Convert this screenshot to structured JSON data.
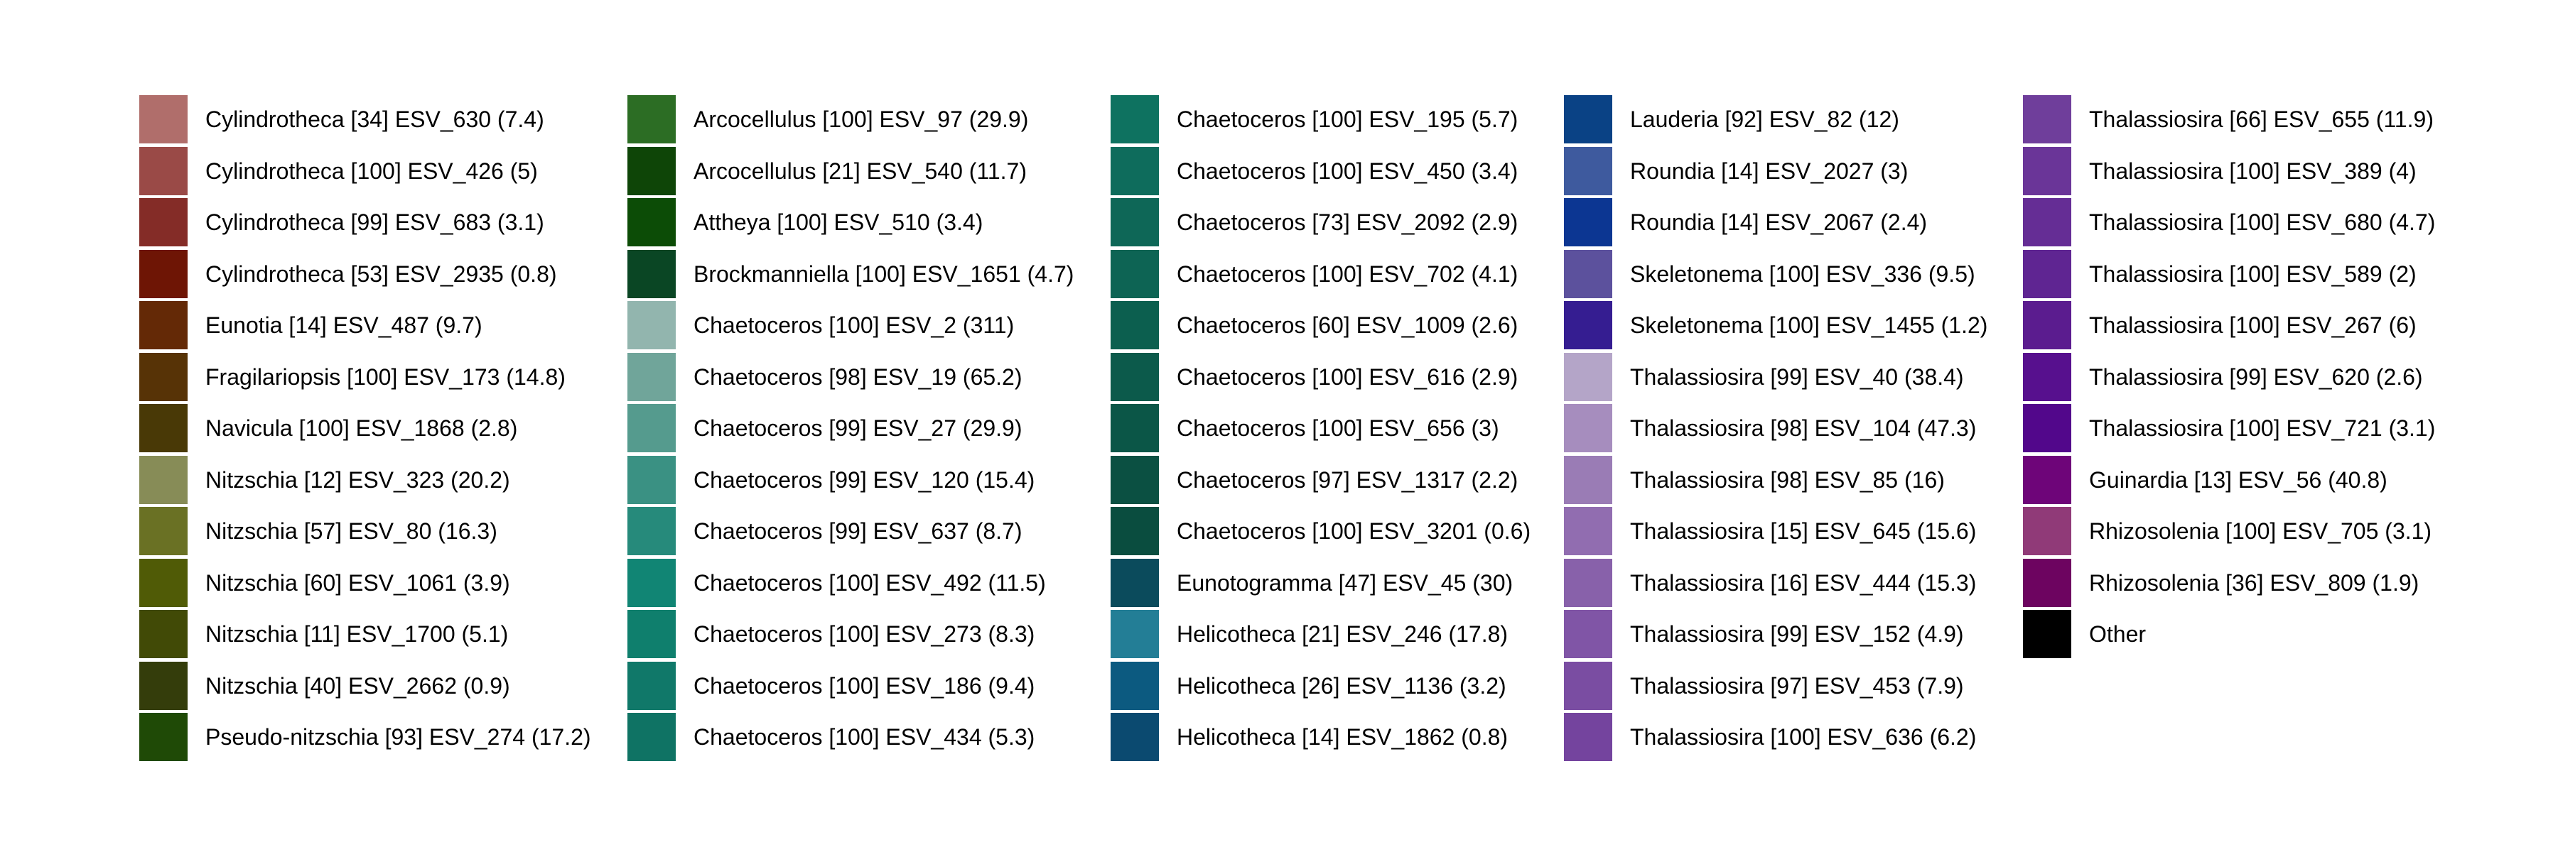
{
  "chart_data": {
    "type": "legend",
    "columns": [
      [
        {
          "label": "Cylindrotheca [34] ESV_630 (7.4)",
          "color": "#B06E6B"
        },
        {
          "label": "Cylindrotheca [100] ESV_426 (5)",
          "color": "#9A4A47"
        },
        {
          "label": "Cylindrotheca [99] ESV_683 (3.1)",
          "color": "#842C27"
        },
        {
          "label": "Cylindrotheca [53] ESV_2935 (0.8)",
          "color": "#6E1505"
        },
        {
          "label": "Eunotia [14] ESV_487 (9.7)",
          "color": "#642906"
        },
        {
          "label": "Fragilariopsis [100] ESV_173 (14.8)",
          "color": "#573306"
        },
        {
          "label": "Navicula [100] ESV_1868 (2.8)",
          "color": "#493906"
        },
        {
          "label": "Nitzschia [12] ESV_323 (20.2)",
          "color": "#878C57"
        },
        {
          "label": "Nitzschia [57] ESV_80 (16.3)",
          "color": "#6A7124"
        },
        {
          "label": "Nitzschia [60] ESV_1061 (3.9)",
          "color": "#505B06"
        },
        {
          "label": "Nitzschia [11] ESV_1700 (5.1)",
          "color": "#414A06"
        },
        {
          "label": "Nitzschia [40] ESV_2662 (0.9)",
          "color": "#343D0B"
        },
        {
          "label": "Pseudo-nitzschia [93] ESV_274 (17.2)",
          "color": "#1F4A06"
        }
      ],
      [
        {
          "label": "Arcocellulus [100] ESV_97 (29.9)",
          "color": "#2C6D24"
        },
        {
          "label": "Arcocellulus [21] ESV_540 (11.7)",
          "color": "#0E4507"
        },
        {
          "label": "Attheya [100] ESV_510 (3.4)",
          "color": "#0C4C06"
        },
        {
          "label": "Brockmanniella [100] ESV_1651 (4.7)",
          "color": "#0A4624"
        },
        {
          "label": "Chaetoceros [100] ESV_2 (311)",
          "color": "#92B5AE"
        },
        {
          "label": "Chaetoceros [98] ESV_19 (65.2)",
          "color": "#70A59A"
        },
        {
          "label": "Chaetoceros [99] ESV_27 (29.9)",
          "color": "#559B8E"
        },
        {
          "label": "Chaetoceros [99] ESV_120 (15.4)",
          "color": "#3A9183"
        },
        {
          "label": "Chaetoceros [99] ESV_637 (8.7)",
          "color": "#268A7B"
        },
        {
          "label": "Chaetoceros [100] ESV_492 (11.5)",
          "color": "#118574"
        },
        {
          "label": "Chaetoceros [100] ESV_273 (8.3)",
          "color": "#0F7F6D"
        },
        {
          "label": "Chaetoceros [100] ESV_186 (9.4)",
          "color": "#107869"
        },
        {
          "label": "Chaetoceros [100] ESV_434 (5.3)",
          "color": "#0F7364"
        }
      ],
      [
        {
          "label": "Chaetoceros [100] ESV_195 (5.7)",
          "color": "#0E7260"
        },
        {
          "label": "Chaetoceros [100] ESV_450 (3.4)",
          "color": "#0E6C5C"
        },
        {
          "label": "Chaetoceros [73] ESV_2092 (2.9)",
          "color": "#0E6757"
        },
        {
          "label": "Chaetoceros [100] ESV_702 (4.1)",
          "color": "#0D6454"
        },
        {
          "label": "Chaetoceros [60] ESV_1009 (2.6)",
          "color": "#0C5F4F"
        },
        {
          "label": "Chaetoceros [100] ESV_616 (2.9)",
          "color": "#0C5A4B"
        },
        {
          "label": "Chaetoceros [100] ESV_656 (3)",
          "color": "#0B5647"
        },
        {
          "label": "Chaetoceros [97] ESV_1317 (2.2)",
          "color": "#0B5042"
        },
        {
          "label": "Chaetoceros [100] ESV_3201 (0.6)",
          "color": "#0A4D3F"
        },
        {
          "label": "Eunotogramma [47] ESV_45 (30)",
          "color": "#0B4B5C"
        },
        {
          "label": "Helicotheca [21] ESV_246 (17.8)",
          "color": "#237E96"
        },
        {
          "label": "Helicotheca [26] ESV_1136 (3.2)",
          "color": "#0C5A80"
        },
        {
          "label": "Helicotheca [14] ESV_1862 (0.8)",
          "color": "#0B4A70"
        }
      ],
      [
        {
          "label": "Lauderia [92] ESV_82 (12)",
          "color": "#0A4285"
        },
        {
          "label": "Roundia [14] ESV_2027 (3)",
          "color": "#3E5A9E"
        },
        {
          "label": "Roundia [14] ESV_2067 (2.4)",
          "color": "#0C3692"
        },
        {
          "label": "Skeletonema [100] ESV_336 (9.5)",
          "color": "#5C519D"
        },
        {
          "label": "Skeletonema [100] ESV_1455 (1.2)",
          "color": "#351D91"
        },
        {
          "label": "Thalassiosira [99] ESV_40 (38.4)",
          "color": "#B4A5C8"
        },
        {
          "label": "Thalassiosira [98] ESV_104 (47.3)",
          "color": "#A68DBE"
        },
        {
          "label": "Thalassiosira [98] ESV_85 (16)",
          "color": "#9A7CB5"
        },
        {
          "label": "Thalassiosira [15] ESV_645 (15.6)",
          "color": "#916DB0"
        },
        {
          "label": "Thalassiosira [16] ESV_444 (15.3)",
          "color": "#8861AA"
        },
        {
          "label": "Thalassiosira [99] ESV_152 (4.9)",
          "color": "#8055A6"
        },
        {
          "label": "Thalassiosira [97] ESV_453 (7.9)",
          "color": "#7A4DA2"
        },
        {
          "label": "Thalassiosira [100] ESV_636 (6.2)",
          "color": "#74449E"
        }
      ],
      [
        {
          "label": "Thalassiosira [66] ESV_655 (11.9)",
          "color": "#6F3E9B"
        },
        {
          "label": "Thalassiosira [100] ESV_389 (4)",
          "color": "#6A3598"
        },
        {
          "label": "Thalassiosira [100] ESV_680 (4.7)",
          "color": "#652D95"
        },
        {
          "label": "Thalassiosira [100] ESV_589 (2)",
          "color": "#5F2592"
        },
        {
          "label": "Thalassiosira [100] ESV_267 (6)",
          "color": "#5B1C8F"
        },
        {
          "label": "Thalassiosira [99] ESV_620 (2.6)",
          "color": "#57108E"
        },
        {
          "label": "Thalassiosira [100] ESV_721 (3.1)",
          "color": "#52078B"
        },
        {
          "label": "Guinardia [13] ESV_56 (40.8)",
          "color": "#6E0579"
        },
        {
          "label": "Rhizosolenia [100] ESV_705 (3.1)",
          "color": "#903A78"
        },
        {
          "label": "Rhizosolenia [36] ESV_809 (1.9)",
          "color": "#6D0460"
        },
        {
          "label": "Other",
          "color": "#000000"
        }
      ]
    ]
  }
}
